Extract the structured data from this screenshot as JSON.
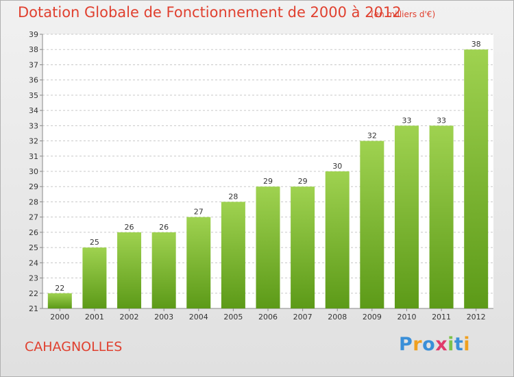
{
  "header": {
    "title": "Dotation Globale de Fonctionnement de 2000 à 2012",
    "subtitle": "(en milliers d'€)"
  },
  "footer": {
    "commune": "CAHAGNOLLES",
    "logo_text": "Proxiti"
  },
  "colors": {
    "title": "#e0402f",
    "bar_top": "#9fd250",
    "bar_bottom": "#5c9a18",
    "grid": "#c8c8c8"
  },
  "chart_data": {
    "type": "bar",
    "title": "Dotation Globale de Fonctionnement de 2000 à 2012",
    "subtitle": "(en milliers d'€)",
    "categories": [
      "2000",
      "2001",
      "2002",
      "2003",
      "2004",
      "2005",
      "2006",
      "2007",
      "2008",
      "2009",
      "2010",
      "2011",
      "2012"
    ],
    "values": [
      22,
      25,
      26,
      26,
      27,
      28,
      29,
      29,
      30,
      32,
      33,
      33,
      38
    ],
    "ylim": [
      21,
      39
    ],
    "yticks": [
      21,
      22,
      23,
      24,
      25,
      26,
      27,
      28,
      29,
      30,
      31,
      32,
      33,
      34,
      35,
      36,
      37,
      38,
      39
    ],
    "grid": true,
    "data_labels": true
  }
}
